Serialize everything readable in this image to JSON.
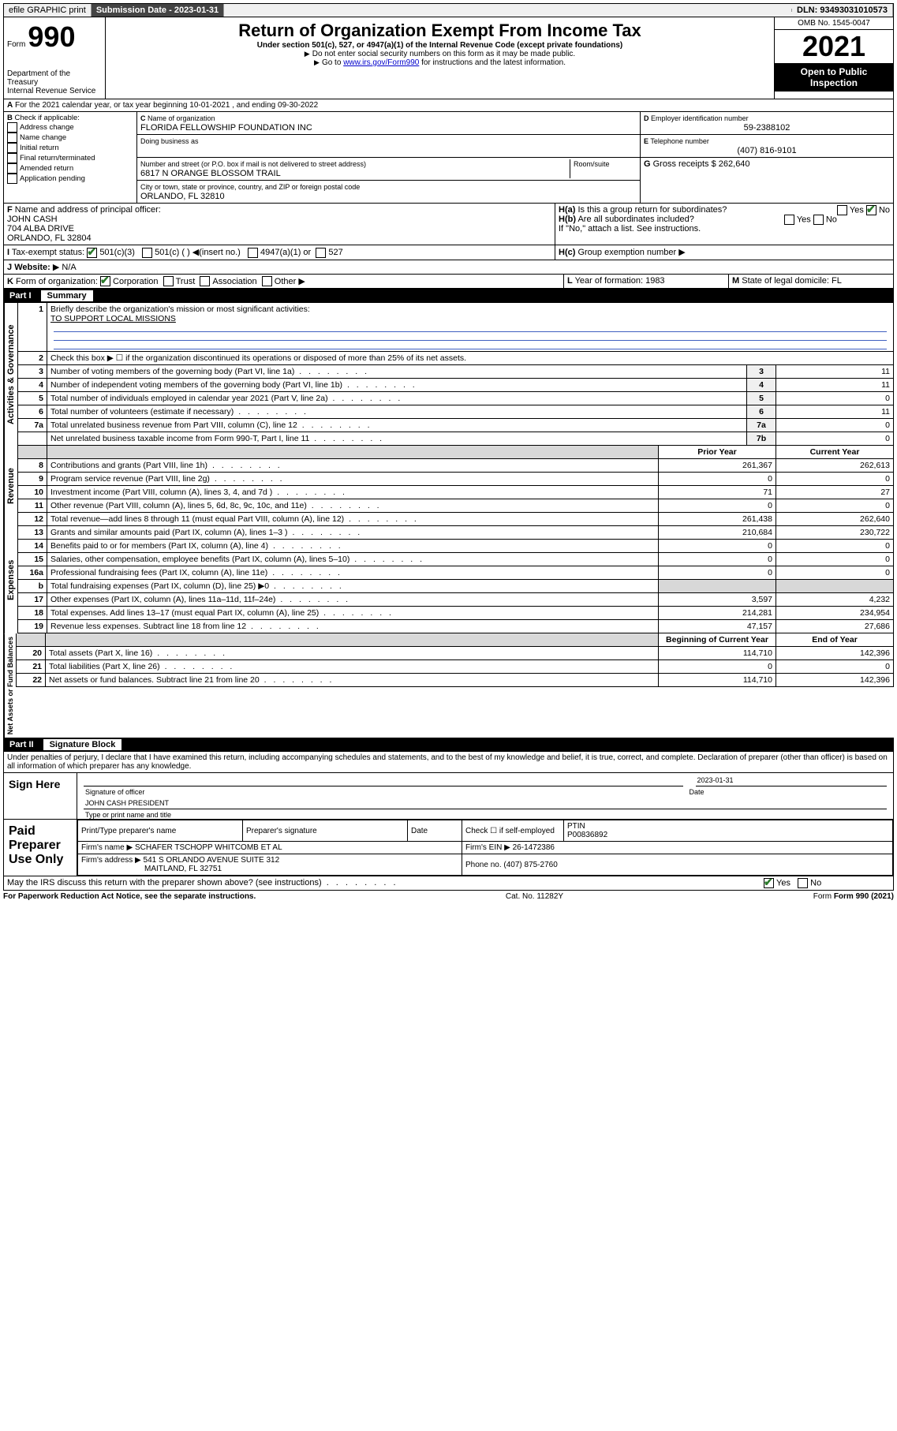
{
  "topbar": {
    "efile": "efile GRAPHIC print",
    "submission_label": "Submission Date - 2023-01-31",
    "dln": "DLN: 93493031010573"
  },
  "header": {
    "form_label": "Form",
    "form_no": "990",
    "dept": "Department of the Treasury",
    "irs": "Internal Revenue Service",
    "title": "Return of Organization Exempt From Income Tax",
    "sub1": "Under section 501(c), 527, or 4947(a)(1) of the Internal Revenue Code (except private foundations)",
    "sub2": "Do not enter social security numbers on this form as it may be made public.",
    "sub3_pre": "Go to ",
    "sub3_link": "www.irs.gov/Form990",
    "sub3_post": " for instructions and the latest information.",
    "omb": "OMB No. 1545-0047",
    "year": "2021",
    "inspect": "Open to Public Inspection"
  },
  "rowA": {
    "text": "For the 2021 calendar year, or tax year beginning 10-01-2021   , and ending 09-30-2022",
    "prefix": "A"
  },
  "B": {
    "label": "Check if applicable:",
    "items": [
      "Address change",
      "Name change",
      "Initial return",
      "Final return/terminated",
      "Amended return",
      "Application pending"
    ],
    "prefix": "B"
  },
  "C": {
    "name_label": "Name of organization",
    "name": "FLORIDA FELLOWSHIP FOUNDATION INC",
    "dba_label": "Doing business as",
    "addr_label": "Number and street (or P.O. box if mail is not delivered to street address)",
    "room_label": "Room/suite",
    "addr": "6817 N ORANGE BLOSSOM TRAIL",
    "city_label": "City or town, state or province, country, and ZIP or foreign postal code",
    "city": "ORLANDO, FL  32810",
    "prefix": "C"
  },
  "D": {
    "label": "Employer identification number",
    "val": "59-2388102",
    "prefix": "D"
  },
  "E": {
    "label": "Telephone number",
    "val": "(407) 816-9101",
    "prefix": "E"
  },
  "G": {
    "label": "Gross receipts $",
    "val": "262,640",
    "prefix": "G"
  },
  "F": {
    "label": "Name and address of principal officer:",
    "name": "JOHN CASH",
    "addr1": "704 ALBA DRIVE",
    "addr2": "ORLANDO, FL  32804",
    "prefix": "F"
  },
  "H": {
    "a_label": "Is this a group return for subordinates?",
    "a_yes": "Yes",
    "a_no": "No",
    "b_label": "Are all subordinates included?",
    "b_yes": "Yes",
    "b_no": "No",
    "b_note": "If \"No,\" attach a list. See instructions.",
    "c_label": "Group exemption number",
    "ha": "H(a)",
    "hb": "H(b)",
    "hc": "H(c)"
  },
  "I": {
    "label": "Tax-exempt status:",
    "o1": "501(c)(3)",
    "o2": "501(c) (  )",
    "o2n": "(insert no.)",
    "o3": "4947(a)(1) or",
    "o4": "527",
    "prefix": "I"
  },
  "J": {
    "label": "Website:",
    "val": "N/A",
    "prefix": "J"
  },
  "K": {
    "label": "Form of organization:",
    "o1": "Corporation",
    "o2": "Trust",
    "o3": "Association",
    "o4": "Other",
    "prefix": "K"
  },
  "L": {
    "label": "Year of formation:",
    "val": "1983",
    "prefix": "L"
  },
  "M": {
    "label": "State of legal domicile:",
    "val": "FL",
    "prefix": "M"
  },
  "part1": {
    "title": "Part I",
    "name": "Summary",
    "q1_label": "Briefly describe the organization's mission or most significant activities:",
    "q1_num": "1",
    "q1_val": "TO SUPPORT LOCAL MISSIONS",
    "q2_num": "2",
    "q2": "Check this box ▶ ☐  if the organization discontinued its operations or disposed of more than 25% of its net assets.",
    "rows_simple": [
      {
        "n": "3",
        "t": "Number of voting members of the governing body (Part VI, line 1a)",
        "c": "3",
        "v": "11"
      },
      {
        "n": "4",
        "t": "Number of independent voting members of the governing body (Part VI, line 1b)",
        "c": "4",
        "v": "11"
      },
      {
        "n": "5",
        "t": "Total number of individuals employed in calendar year 2021 (Part V, line 2a)",
        "c": "5",
        "v": "0"
      },
      {
        "n": "6",
        "t": "Total number of volunteers (estimate if necessary)",
        "c": "6",
        "v": "11"
      },
      {
        "n": "7a",
        "t": "Total unrelated business revenue from Part VIII, column (C), line 12",
        "c": "7a",
        "v": "0"
      },
      {
        "n": "",
        "t": "Net unrelated business taxable income from Form 990-T, Part I, line 11",
        "c": "7b",
        "v": "0"
      }
    ],
    "col_py": "Prior Year",
    "col_cy": "Current Year",
    "rev_rows": [
      {
        "n": "8",
        "t": "Contributions and grants (Part VIII, line 1h)",
        "py": "261,367",
        "cy": "262,613"
      },
      {
        "n": "9",
        "t": "Program service revenue (Part VIII, line 2g)",
        "py": "0",
        "cy": "0"
      },
      {
        "n": "10",
        "t": "Investment income (Part VIII, column (A), lines 3, 4, and 7d )",
        "py": "71",
        "cy": "27"
      },
      {
        "n": "11",
        "t": "Other revenue (Part VIII, column (A), lines 5, 6d, 8c, 9c, 10c, and 11e)",
        "py": "0",
        "cy": "0"
      },
      {
        "n": "12",
        "t": "Total revenue—add lines 8 through 11 (must equal Part VIII, column (A), line 12)",
        "py": "261,438",
        "cy": "262,640"
      }
    ],
    "exp_rows": [
      {
        "n": "13",
        "t": "Grants and similar amounts paid (Part IX, column (A), lines 1–3 )",
        "py": "210,684",
        "cy": "230,722"
      },
      {
        "n": "14",
        "t": "Benefits paid to or for members (Part IX, column (A), line 4)",
        "py": "0",
        "cy": "0"
      },
      {
        "n": "15",
        "t": "Salaries, other compensation, employee benefits (Part IX, column (A), lines 5–10)",
        "py": "0",
        "cy": "0"
      },
      {
        "n": "16a",
        "t": "Professional fundraising fees (Part IX, column (A), line 11e)",
        "py": "0",
        "cy": "0"
      },
      {
        "n": "b",
        "t": "Total fundraising expenses (Part IX, column (D), line 25) ▶0",
        "py": "",
        "cy": "",
        "shade": true
      },
      {
        "n": "17",
        "t": "Other expenses (Part IX, column (A), lines 11a–11d, 11f–24e)",
        "py": "3,597",
        "cy": "4,232"
      },
      {
        "n": "18",
        "t": "Total expenses. Add lines 13–17 (must equal Part IX, column (A), line 25)",
        "py": "214,281",
        "cy": "234,954"
      },
      {
        "n": "19",
        "t": "Revenue less expenses. Subtract line 18 from line 12",
        "py": "47,157",
        "cy": "27,686"
      }
    ],
    "col_boy": "Beginning of Current Year",
    "col_eoy": "End of Year",
    "na_rows": [
      {
        "n": "20",
        "t": "Total assets (Part X, line 16)",
        "py": "114,710",
        "cy": "142,396"
      },
      {
        "n": "21",
        "t": "Total liabilities (Part X, line 26)",
        "py": "0",
        "cy": "0"
      },
      {
        "n": "22",
        "t": "Net assets or fund balances. Subtract line 21 from line 20",
        "py": "114,710",
        "cy": "142,396"
      }
    ],
    "vlabels": {
      "ag": "Activities & Governance",
      "rev": "Revenue",
      "exp": "Expenses",
      "na": "Net Assets or Fund Balances"
    }
  },
  "part2": {
    "title": "Part II",
    "name": "Signature Block",
    "decl": "Under penalties of perjury, I declare that I have examined this return, including accompanying schedules and statements, and to the best of my knowledge and belief, it is true, correct, and complete. Declaration of preparer (other than officer) is based on all information of which preparer has any knowledge.",
    "sign_here": "Sign Here",
    "sig_officer": "Signature of officer",
    "date_label": "Date",
    "date_val": "2023-01-31",
    "name_title_label": "Type or print name and title",
    "name_title": "JOHN CASH  PRESIDENT",
    "paid": "Paid Preparer Use Only",
    "col1": "Print/Type preparer's name",
    "col2": "Preparer's signature",
    "col3": "Date",
    "check_self": "Check ☐ if self-employed",
    "ptin_label": "PTIN",
    "ptin": "P00836892",
    "firm_name_label": "Firm's name",
    "firm_name": "SCHAFER TSCHOPP WHITCOMB ET AL",
    "firm_ein_label": "Firm's EIN",
    "firm_ein": "26-1472386",
    "firm_addr_label": "Firm's address",
    "firm_addr1": "541 S ORLANDO AVENUE SUITE 312",
    "firm_addr2": "MAITLAND, FL  32751",
    "phone_label": "Phone no.",
    "phone": "(407) 875-2760",
    "discuss": "May the IRS discuss this return with the preparer shown above? (see instructions)",
    "yes": "Yes",
    "no": "No"
  },
  "footer": {
    "pra": "For Paperwork Reduction Act Notice, see the separate instructions.",
    "cat": "Cat. No. 11282Y",
    "form": "Form 990 (2021)"
  }
}
